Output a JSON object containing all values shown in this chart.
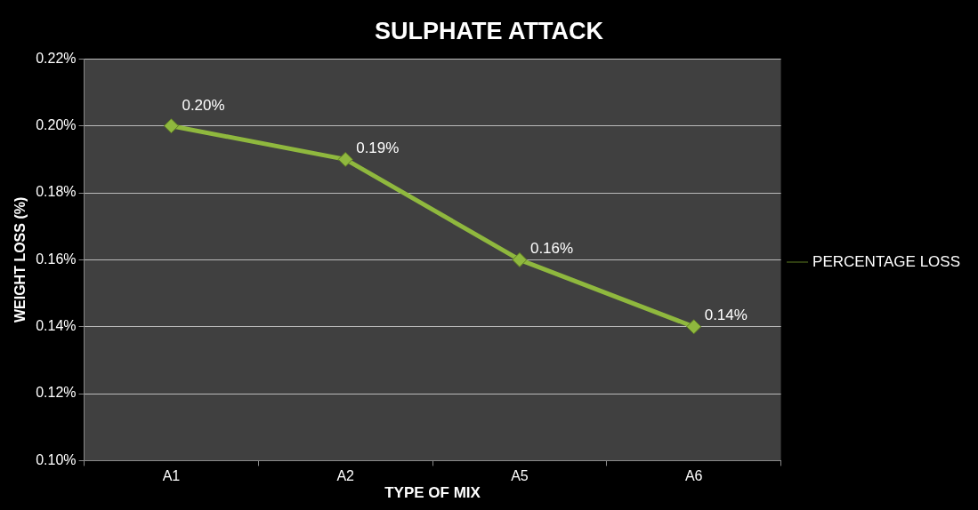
{
  "chart_data": {
    "type": "line",
    "title": "SULPHATE ATTACK",
    "xlabel": "TYPE OF MIX",
    "ylabel": "WEIGHT LOSS (%)",
    "categories": [
      "A1",
      "A2",
      "A5",
      "A6"
    ],
    "series": [
      {
        "name": "PERCENTAGE LOSS",
        "color": "#8fb83e",
        "values": [
          0.2,
          0.19,
          0.16,
          0.14
        ],
        "value_labels": [
          "0.20%",
          "0.19%",
          "0.16%",
          "0.14%"
        ]
      }
    ],
    "ylim": [
      0.1,
      0.22
    ],
    "yticks": [
      {
        "value": 0.1,
        "label": "0.10%"
      },
      {
        "value": 0.12,
        "label": "0.12%"
      },
      {
        "value": 0.14,
        "label": "0.14%"
      },
      {
        "value": 0.16,
        "label": "0.16%"
      },
      {
        "value": 0.18,
        "label": "0.18%"
      },
      {
        "value": 0.2,
        "label": "0.20%"
      },
      {
        "value": 0.22,
        "label": "0.22%"
      }
    ],
    "grid": "y",
    "legend": "right",
    "marker": "diamond",
    "line_style": "solid"
  }
}
